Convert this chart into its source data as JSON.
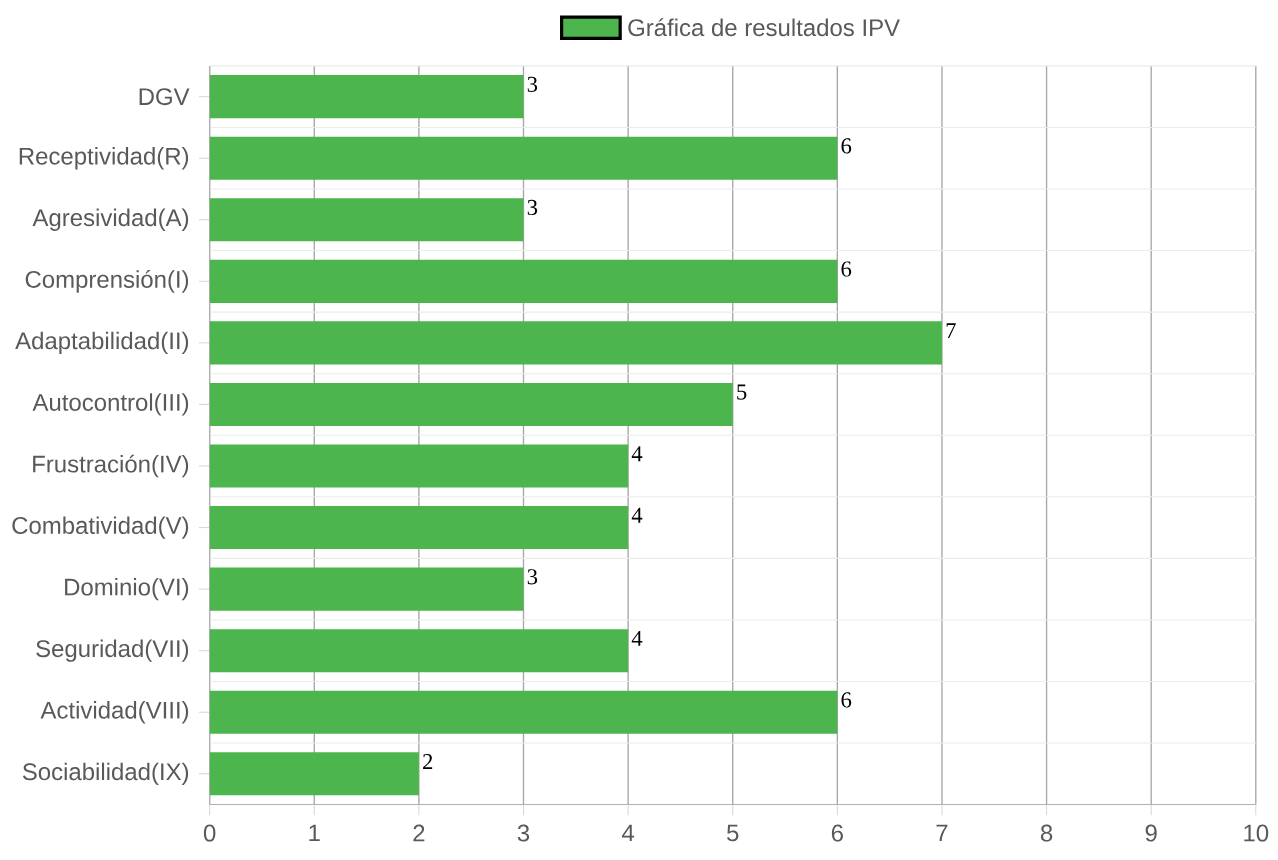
{
  "chart_data": {
    "type": "bar",
    "orientation": "horizontal",
    "categories": [
      "DGV",
      "Receptividad(R)",
      "Agresividad(A)",
      "Comprensión(I)",
      "Adaptabilidad(II)",
      "Autocontrol(III)",
      "Frustración(IV)",
      "Combatividad(V)",
      "Dominio(VI)",
      "Seguridad(VII)",
      "Actividad(VIII)",
      "Sociabilidad(IX)"
    ],
    "series": [
      {
        "name": "Gráfica de resultados IPV",
        "color": "#4db54d",
        "values": [
          3,
          6,
          3,
          6,
          7,
          5,
          4,
          4,
          3,
          4,
          6,
          2
        ]
      }
    ],
    "xlim": [
      0,
      10
    ],
    "xticks": [
      0,
      1,
      2,
      3,
      4,
      5,
      6,
      7,
      8,
      9,
      10
    ],
    "grid": true,
    "legend": "top",
    "data_labels": true
  }
}
